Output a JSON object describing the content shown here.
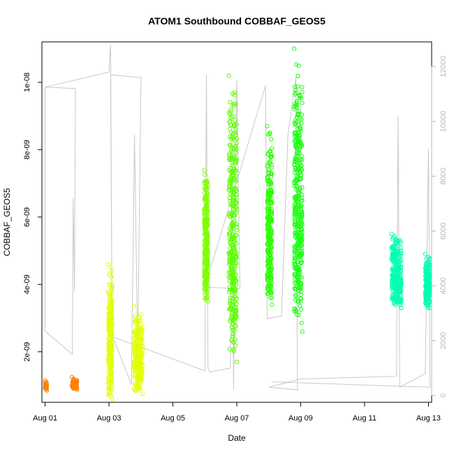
{
  "chart_data": {
    "type": "scatter",
    "title": "ATOM1 Southbound COBBAF_GEOS5",
    "xlabel": "Date",
    "ylabel": "COBBAF_GEOS5",
    "y2label": "",
    "xlim": [
      -0.1,
      12.1
    ],
    "ylim": [
      5e-10,
      1.12e-08
    ],
    "y2lim": [
      -250,
      12900
    ],
    "x_ticks": [
      {
        "value": 0,
        "label": "Aug 01"
      },
      {
        "value": 2,
        "label": "Aug 03"
      },
      {
        "value": 4,
        "label": "Aug 05"
      },
      {
        "value": 6,
        "label": "Aug 07"
      },
      {
        "value": 8,
        "label": "Aug 09"
      },
      {
        "value": 10,
        "label": "Aug 11"
      },
      {
        "value": 12,
        "label": "Aug 13"
      }
    ],
    "y_ticks": [
      {
        "value": 2e-09,
        "label": "2e-09"
      },
      {
        "value": 4e-09,
        "label": "4e-09"
      },
      {
        "value": 6e-09,
        "label": "6e-09"
      },
      {
        "value": 8e-09,
        "label": "8e-09"
      },
      {
        "value": 1e-08,
        "label": "1e-08"
      }
    ],
    "y2_ticks": [
      {
        "value": 0,
        "label": "0"
      },
      {
        "value": 2000,
        "label": "2000"
      },
      {
        "value": 4000,
        "label": "4000"
      },
      {
        "value": 6000,
        "label": "6000"
      },
      {
        "value": 8000,
        "label": "8000"
      },
      {
        "value": 10000,
        "label": "10000"
      },
      {
        "value": 12000,
        "label": "12000"
      }
    ],
    "grid": false,
    "legend": "none",
    "colors": {
      "altitude_line": "#c8c8c8",
      "axis": "#000000",
      "right_axis": "#b8b8b8"
    },
    "clusters": [
      {
        "x_min": 0.0,
        "x_max": 0.05,
        "y_min": 8.5e-10,
        "y_max": 1.15e-09,
        "count": 40,
        "color": "#ff8000"
      },
      {
        "x_min": 0.84,
        "x_max": 1.0,
        "y_min": 8.8e-10,
        "y_max": 1.25e-09,
        "count": 60,
        "color": "#ff8000"
      },
      {
        "x_min": 1.98,
        "x_max": 2.1,
        "y_min": 6e-10,
        "y_max": 4.6e-09,
        "count": 220,
        "color": "#e1ff00"
      },
      {
        "x_min": 2.78,
        "x_max": 3.05,
        "y_min": 7.5e-10,
        "y_max": 3.35e-09,
        "count": 220,
        "color": "#e1ff00"
      },
      {
        "x_min": 4.98,
        "x_max": 5.1,
        "y_min": 3.5e-09,
        "y_max": 7.4e-09,
        "count": 260,
        "color": "#7dff00"
      },
      {
        "x_min": 5.75,
        "x_max": 6.0,
        "y_min": 1.7e-09,
        "y_max": 1.02e-08,
        "count": 340,
        "color": "#5cff00"
      },
      {
        "x_min": 6.95,
        "x_max": 7.1,
        "y_min": 3.4e-09,
        "y_max": 8.7e-09,
        "count": 260,
        "color": "#2aff00"
      },
      {
        "x_min": 7.8,
        "x_max": 8.05,
        "y_min": 2.6e-09,
        "y_max": 1.1e-08,
        "count": 380,
        "color": "#1cff13"
      },
      {
        "x_min": 10.85,
        "x_max": 11.15,
        "y_min": 3.3e-09,
        "y_max": 5.5e-09,
        "count": 260,
        "color": "#00ffb0"
      },
      {
        "x_min": 11.9,
        "x_max": 12.05,
        "y_min": 3.3e-09,
        "y_max": 4.9e-09,
        "count": 200,
        "color": "#00ffb0"
      }
    ],
    "altitude_trace": [
      [
        0.0,
        11250
      ],
      [
        0.0,
        2350
      ],
      [
        0.85,
        1500
      ],
      [
        0.88,
        7200
      ],
      [
        0.92,
        3800
      ],
      [
        0.95,
        11200
      ],
      [
        0.0,
        11250
      ],
      [
        2.0,
        11800
      ],
      [
        2.05,
        12800
      ],
      [
        2.1,
        2200
      ],
      [
        2.7,
        400
      ],
      [
        2.8,
        9500
      ],
      [
        2.9,
        1500
      ],
      [
        3.0,
        11500
      ],
      [
        3.0,
        11600
      ],
      [
        2.05,
        11700
      ],
      [
        2.1,
        2150
      ],
      [
        5.0,
        900
      ],
      [
        5.05,
        11700
      ],
      [
        5.1,
        1000
      ],
      [
        5.15,
        850
      ],
      [
        5.8,
        1000
      ],
      [
        5.85,
        9600
      ],
      [
        5.9,
        200
      ],
      [
        6.0,
        11500
      ],
      [
        6.1,
        3900
      ],
      [
        5.0,
        3950
      ],
      [
        6.9,
        11300
      ],
      [
        6.95,
        2800
      ],
      [
        7.4,
        2900
      ],
      [
        7.6,
        9500
      ],
      [
        7.85,
        11600
      ],
      [
        7.9,
        200
      ],
      [
        7.0,
        300
      ],
      [
        8.0,
        600
      ],
      [
        11.0,
        700
      ],
      [
        11.05,
        10200
      ],
      [
        11.1,
        300
      ],
      [
        11.9,
        800
      ],
      [
        12.0,
        9000
      ],
      [
        12.05,
        300
      ],
      [
        7.1,
        500
      ]
    ]
  }
}
